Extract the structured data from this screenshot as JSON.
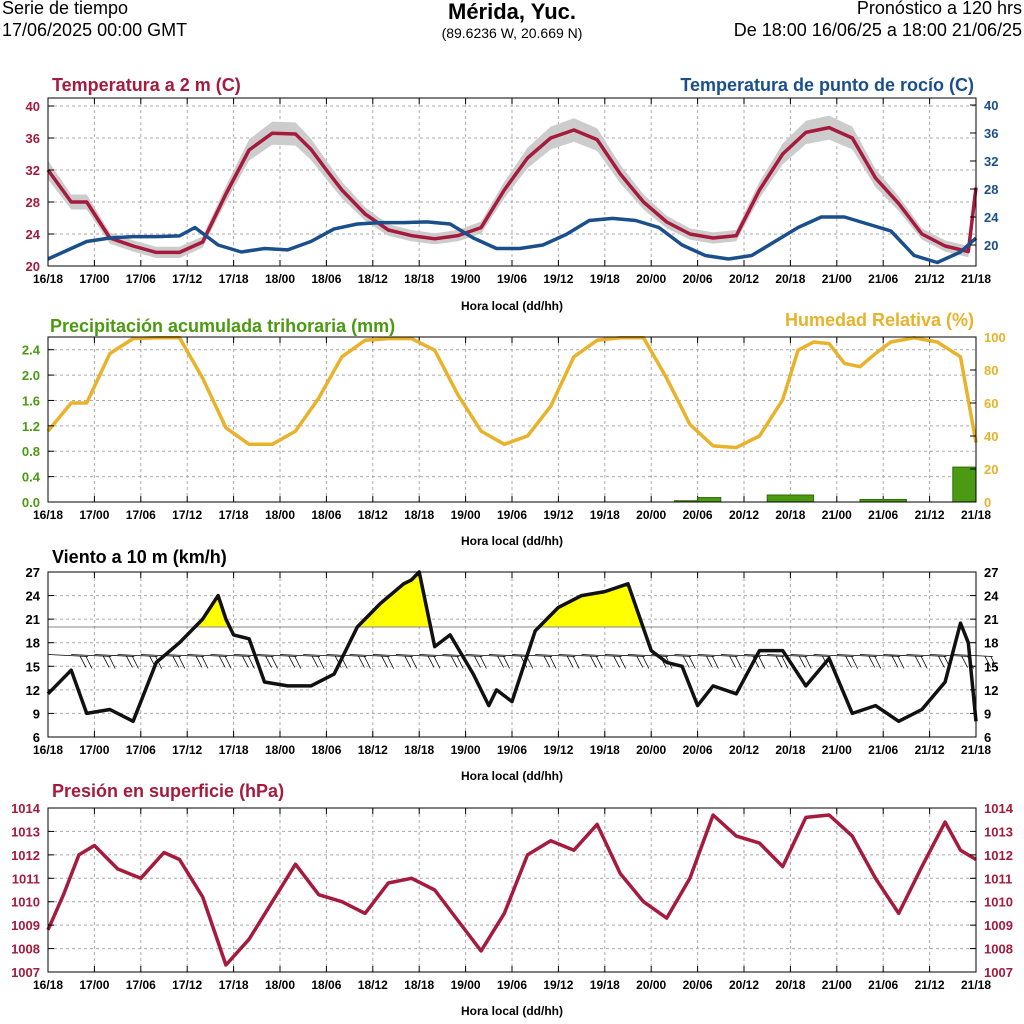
{
  "header": {
    "left_line1": "Serie de tiempo",
    "left_line2": "17/06/2025 00:00 GMT",
    "city": "Mérida, Yuc.",
    "coords": "(89.6236 W, 20.669 N)",
    "right_line1": "Pronóstico a 120 hrs",
    "right_line2": "De 18:00 16/06/25 a 18:00 21/06/25"
  },
  "colors": {
    "temp": "#a51a3d",
    "dew": "#1a4f8c",
    "precip": "#4a9a12",
    "rh": "#e8b22a",
    "wind": "#111111",
    "wind_fill": "#ffff00",
    "pressure": "#a51a3d",
    "band": "#cccccc",
    "grid": "#aaaaaa"
  },
  "chart_data": [
    {
      "type": "line",
      "title": "Temperatura a 2 m (C)",
      "title_right": "Temperatura de punto de rocío (C)",
      "xlabel": "Hora local (dd/hh)",
      "x_ticks": [
        "16/18",
        "17/00",
        "17/06",
        "17/12",
        "17/18",
        "18/00",
        "18/06",
        "18/12",
        "18/18",
        "19/00",
        "19/06",
        "19/12",
        "19/18",
        "20/00",
        "20/06",
        "20/12",
        "20/18",
        "21/00",
        "21/06",
        "21/12",
        "21/18"
      ],
      "x_range": [
        0,
        120
      ],
      "ylim_left": [
        20,
        41
      ],
      "yticks_left": [
        20,
        24,
        28,
        32,
        36,
        40
      ],
      "ylim_right": [
        17,
        41
      ],
      "yticks_right": [
        20,
        24,
        28,
        32,
        36,
        40
      ],
      "series": [
        {
          "name": "Temperatura a 2 m (C)",
          "axis": "left",
          "x": [
            0,
            3,
            5,
            8,
            11,
            14,
            17,
            20,
            23,
            26,
            29,
            32,
            34,
            36,
            38,
            41,
            44,
            47,
            50,
            53,
            56,
            59,
            62,
            65,
            68,
            71,
            74,
            77,
            80,
            83,
            86,
            89,
            92,
            95,
            98,
            101,
            104,
            107,
            110,
            113,
            116,
            119,
            120
          ],
          "values": [
            32,
            28,
            28,
            23.5,
            22.5,
            21.7,
            21.7,
            23,
            29,
            34.5,
            36.6,
            36.5,
            34.6,
            32,
            29.5,
            26.5,
            24.5,
            23.8,
            23.4,
            23.8,
            24.8,
            29.5,
            33.5,
            36,
            37,
            35.8,
            31.5,
            28,
            25.5,
            24,
            23.5,
            23.8,
            29.5,
            34,
            36.7,
            37.3,
            36,
            31,
            27.8,
            24,
            22.5,
            21.8,
            29.8
          ]
        },
        {
          "name": "Temperatura de punto de rocío (C)",
          "axis": "right",
          "x": [
            0,
            2,
            5,
            8,
            11,
            14,
            17,
            19,
            22,
            25,
            28,
            31,
            34,
            37,
            40,
            43,
            46,
            49,
            52,
            55,
            58,
            61,
            64,
            67,
            70,
            73,
            76,
            79,
            82,
            85,
            88,
            91,
            94,
            97,
            100,
            103,
            106,
            109,
            112,
            115,
            118,
            120
          ],
          "values": [
            18,
            19,
            20.5,
            21,
            21.2,
            21.2,
            21.3,
            22.5,
            20,
            19,
            19.5,
            19.3,
            20.5,
            22.3,
            23,
            23.2,
            23.2,
            23.3,
            23,
            21,
            19.5,
            19.5,
            20,
            21.5,
            23.5,
            23.8,
            23.5,
            22.5,
            20,
            18.5,
            18,
            18.5,
            20.5,
            22.5,
            24,
            24,
            23,
            22,
            18.5,
            17.5,
            19,
            21
          ]
        }
      ]
    },
    {
      "type": "bar",
      "title": "Precipitación acumulada trihoraria (mm)",
      "title_right": "Humedad Relativa (%)",
      "xlabel": "Hora local (dd/hh)",
      "x_ticks": [
        "16/18",
        "17/00",
        "17/06",
        "17/12",
        "17/18",
        "18/00",
        "18/06",
        "18/12",
        "18/18",
        "19/00",
        "19/06",
        "19/12",
        "19/18",
        "20/00",
        "20/06",
        "20/12",
        "20/18",
        "21/00",
        "21/06",
        "21/12",
        "21/18"
      ],
      "x_range": [
        0,
        120
      ],
      "ylim_left": [
        0,
        2.6
      ],
      "yticks_left": [
        0,
        0.4,
        0.8,
        1.2,
        1.6,
        2.0,
        2.4
      ],
      "ylim_right": [
        0,
        100
      ],
      "yticks_right": [
        0,
        20,
        40,
        60,
        80,
        100
      ],
      "bars": [
        {
          "x0": 81,
          "x1": 84,
          "value": 0.02
        },
        {
          "x0": 84,
          "x1": 87,
          "value": 0.07
        },
        {
          "x0": 93,
          "x1": 99,
          "value": 0.11
        },
        {
          "x0": 105,
          "x1": 111,
          "value": 0.04
        },
        {
          "x0": 117,
          "x1": 120,
          "value": 0.55
        }
      ],
      "rh": {
        "name": "Humedad Relativa (%)",
        "x": [
          0,
          3,
          5,
          8,
          11,
          14,
          17,
          20,
          23,
          26,
          29,
          32,
          35,
          38,
          41,
          44,
          47,
          50,
          53,
          56,
          59,
          62,
          65,
          68,
          71,
          74,
          77,
          80,
          83,
          86,
          89,
          92,
          95,
          97,
          99,
          101,
          103,
          105,
          107,
          109,
          112,
          115,
          118,
          120
        ],
        "values": [
          43,
          60,
          60,
          90,
          99,
          99.5,
          99.5,
          75,
          45,
          35,
          35,
          43,
          63,
          88,
          98,
          99,
          99,
          92,
          65,
          43,
          35,
          40,
          58,
          88,
          98,
          99.5,
          99.5,
          75,
          47,
          34,
          33,
          40,
          62,
          92,
          97,
          96,
          84,
          82,
          90,
          97,
          99.5,
          97,
          88,
          36
        ]
      }
    },
    {
      "type": "line",
      "title": "Viento a 10 m (km/h)",
      "xlabel": "Hora local (dd/hh)",
      "x_ticks": [
        "16/18",
        "17/00",
        "17/06",
        "17/12",
        "17/18",
        "18/00",
        "18/06",
        "18/12",
        "18/18",
        "19/00",
        "19/06",
        "19/12",
        "19/18",
        "20/00",
        "20/06",
        "20/12",
        "20/18",
        "21/00",
        "21/06",
        "21/12",
        "21/18"
      ],
      "x_range": [
        0,
        120
      ],
      "ylim": [
        6,
        27
      ],
      "yticks": [
        6,
        9,
        12,
        15,
        18,
        21,
        24,
        27
      ],
      "threshold": 20,
      "wind_barbs": "present",
      "series": [
        {
          "name": "Viento a 10 m (km/h)",
          "x": [
            0,
            3,
            5,
            8,
            11,
            14,
            17,
            20,
            22,
            23,
            24,
            26,
            28,
            31,
            34,
            37,
            40,
            43,
            46,
            47,
            48,
            50,
            52,
            55,
            57,
            58,
            60,
            63,
            66,
            69,
            72,
            75,
            78,
            80,
            82,
            84,
            86,
            89,
            92,
            95,
            98,
            101,
            104,
            107,
            110,
            113,
            116,
            118,
            119,
            120
          ],
          "values": [
            11.5,
            14.5,
            9,
            9.5,
            8,
            15.5,
            18,
            21,
            24,
            21,
            19,
            18.5,
            13,
            12.5,
            12.5,
            14,
            20,
            23,
            25.5,
            26,
            27,
            17.5,
            19,
            14,
            10,
            12,
            10.5,
            19.5,
            22.5,
            24,
            24.5,
            25.5,
            17,
            15.5,
            15,
            10,
            12.5,
            11.5,
            17,
            17,
            12.5,
            16,
            9,
            10,
            8,
            9.5,
            13,
            20.5,
            18,
            8
          ]
        }
      ]
    },
    {
      "type": "line",
      "title": "Presión en superficie (hPa)",
      "xlabel": "Hora local (dd/hh)",
      "x_ticks": [
        "16/18",
        "17/00",
        "17/06",
        "17/12",
        "17/18",
        "18/00",
        "18/06",
        "18/12",
        "18/18",
        "19/00",
        "19/06",
        "19/12",
        "19/18",
        "20/00",
        "20/06",
        "20/12",
        "20/18",
        "21/00",
        "21/06",
        "21/12",
        "21/18"
      ],
      "x_range": [
        0,
        120
      ],
      "ylim": [
        1007,
        1014
      ],
      "yticks": [
        1007,
        1008,
        1009,
        1010,
        1011,
        1012,
        1013,
        1014
      ],
      "series": [
        {
          "name": "Presión en superficie (hPa)",
          "x": [
            0,
            2,
            4,
            6,
            9,
            12,
            15,
            17,
            20,
            23,
            26,
            29,
            32,
            35,
            38,
            41,
            44,
            47,
            50,
            53,
            56,
            59,
            62,
            65,
            68,
            71,
            74,
            77,
            80,
            83,
            86,
            89,
            92,
            95,
            98,
            101,
            104,
            107,
            110,
            113,
            116,
            118,
            120
          ],
          "values": [
            1008.8,
            1010.3,
            1012,
            1012.4,
            1011.4,
            1011,
            1012.1,
            1011.8,
            1010.2,
            1007.3,
            1008.4,
            1010,
            1011.6,
            1010.3,
            1010,
            1009.5,
            1010.8,
            1011,
            1010.5,
            1009.2,
            1007.9,
            1009.5,
            1012,
            1012.6,
            1012.2,
            1013.3,
            1011.2,
            1010,
            1009.3,
            1011,
            1013.7,
            1012.8,
            1012.5,
            1011.5,
            1013.6,
            1013.7,
            1012.8,
            1011,
            1009.5,
            1011.5,
            1013.4,
            1012.2,
            1011.8
          ]
        }
      ]
    }
  ]
}
